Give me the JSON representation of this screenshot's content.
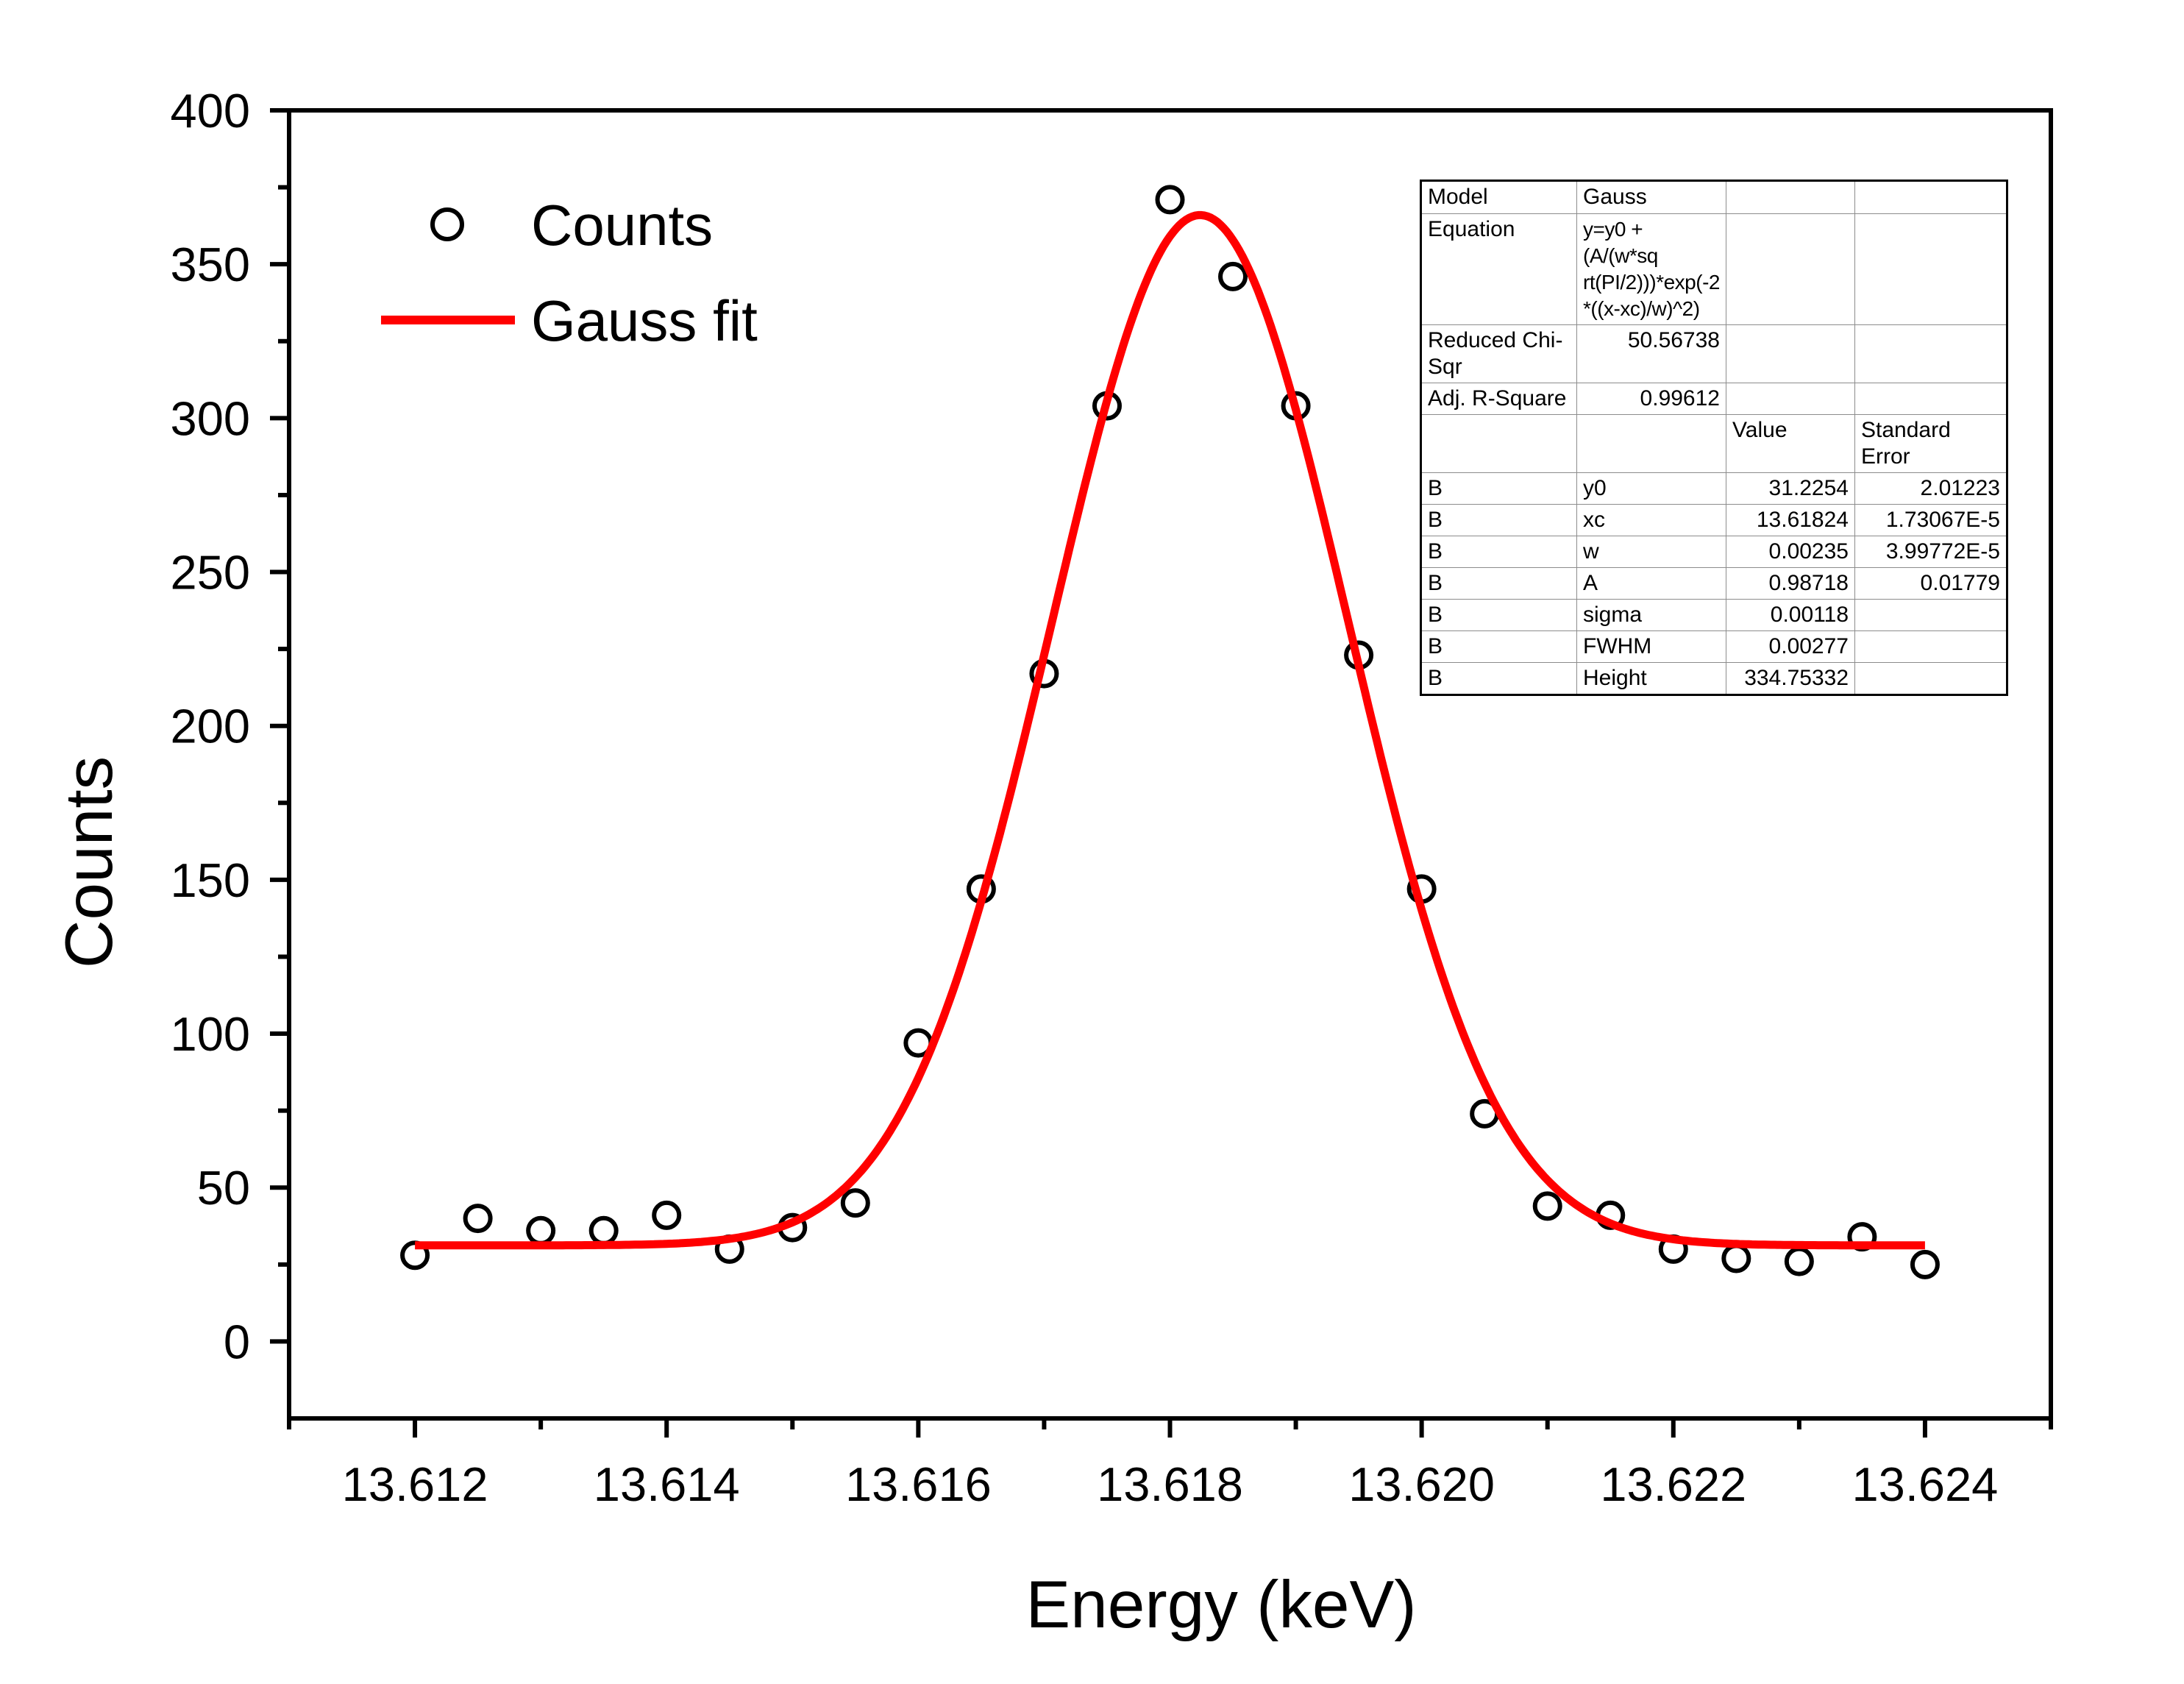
{
  "chart_data": {
    "type": "scatter",
    "title": "",
    "xlabel": "Energy (keV)",
    "ylabel": "Counts",
    "xlim": [
      13.611,
      13.625
    ],
    "ylim": [
      -25,
      400
    ],
    "grid": false,
    "x_major_tick_labels": [
      "13.612",
      "13.614",
      "13.616",
      "13.618",
      "13.620",
      "13.622",
      "13.624"
    ],
    "x_minor_ticks": [
      13.611,
      13.613,
      13.615,
      13.617,
      13.619,
      13.621,
      13.623,
      13.625
    ],
    "y_major_ticks": [
      0,
      50,
      100,
      150,
      200,
      250,
      300,
      350,
      400
    ],
    "y_minor_ticks": [
      25,
      75,
      125,
      175,
      225,
      275,
      325,
      375
    ],
    "legend": {
      "position": "top-left",
      "entries": [
        {
          "label": "Counts",
          "marker": "open-circle",
          "color": "#000000"
        },
        {
          "label": "Gauss fit",
          "marker": "line",
          "color": "#ff0000"
        }
      ]
    },
    "series": [
      {
        "name": "Counts",
        "type": "scatter",
        "marker": "open-circle",
        "color": "#000000",
        "x": [
          13.612,
          13.6125,
          13.613,
          13.6135,
          13.614,
          13.6145,
          13.615,
          13.6155,
          13.616,
          13.6165,
          13.617,
          13.6175,
          13.618,
          13.6185,
          13.619,
          13.6195,
          13.62,
          13.6205,
          13.621,
          13.6215,
          13.622,
          13.6225,
          13.623,
          13.6235,
          13.624
        ],
        "y": [
          28,
          40,
          36,
          36,
          41,
          30,
          37,
          45,
          97,
          147,
          217,
          304,
          371,
          346,
          304,
          223,
          147,
          74,
          44,
          41,
          30,
          27,
          26,
          34,
          25
        ]
      },
      {
        "name": "Gauss fit",
        "type": "line",
        "color": "#ff0000",
        "x_range": [
          13.612,
          13.624
        ],
        "fit": {
          "model": "Gauss",
          "y0": 31.2254,
          "xc": 13.61824,
          "w": 0.00235,
          "A": 0.98718,
          "sigma": 0.00118,
          "fwhm": 0.00277,
          "height": 334.75332
        }
      }
    ]
  },
  "fit_table": {
    "info_rows": [
      {
        "label": "Model",
        "value": "Gauss"
      },
      {
        "label": "Equation",
        "value": "y=y0 + (A/(w*sq\nrt(PI/2)))*exp(-2\n*((x-xc)/w)^2)"
      },
      {
        "label": "Reduced Chi-Sqr",
        "value": "50.56738"
      },
      {
        "label": "Adj. R-Square",
        "value": "0.99612"
      }
    ],
    "header": {
      "value_col": "Value",
      "stderr_col": "Standard Error"
    },
    "param_rows": [
      {
        "dataset": "B",
        "param": "y0",
        "value": "31.2254",
        "stderr": "2.01223"
      },
      {
        "dataset": "B",
        "param": "xc",
        "value": "13.61824",
        "stderr": "1.73067E-5"
      },
      {
        "dataset": "B",
        "param": "w",
        "value": "0.00235",
        "stderr": "3.99772E-5"
      },
      {
        "dataset": "B",
        "param": "A",
        "value": "0.98718",
        "stderr": "0.01779"
      },
      {
        "dataset": "B",
        "param": "sigma",
        "value": "0.00118",
        "stderr": ""
      },
      {
        "dataset": "B",
        "param": "FWHM",
        "value": "0.00277",
        "stderr": ""
      },
      {
        "dataset": "B",
        "param": "Height",
        "value": "334.75332",
        "stderr": ""
      }
    ]
  }
}
